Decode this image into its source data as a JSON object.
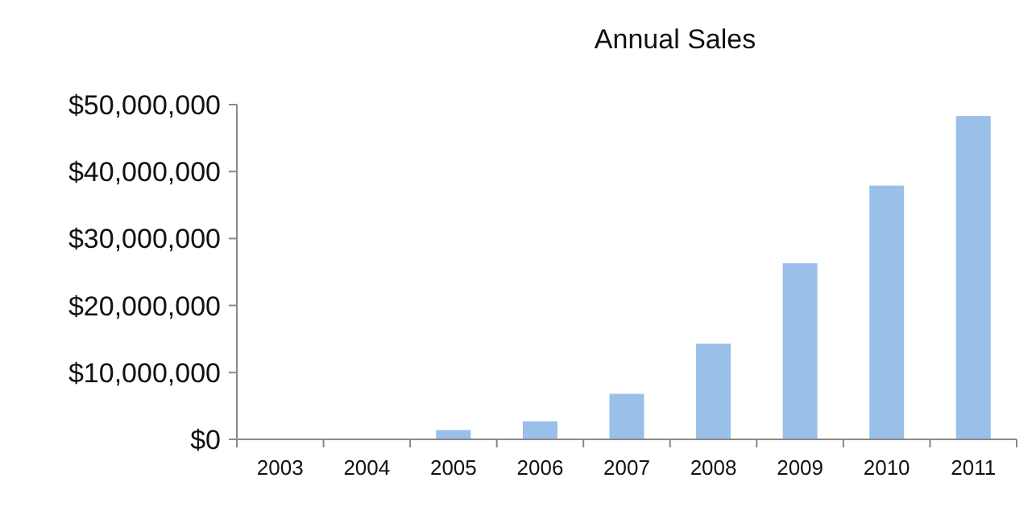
{
  "chart_data": {
    "type": "bar",
    "title": "Annual Sales",
    "categories": [
      "2003",
      "2004",
      "2005",
      "2006",
      "2007",
      "2008",
      "2009",
      "2010",
      "2011"
    ],
    "values": [
      100000,
      100000,
      1400000,
      2700000,
      6800000,
      14300000,
      26300000,
      37900000,
      48300000
    ],
    "color": "#9ac0ea",
    "ylim": [
      0,
      50000000
    ],
    "yticks": [
      {
        "value": 0,
        "label": "$0"
      },
      {
        "value": 10000000,
        "label": "$10,000,000"
      },
      {
        "value": 20000000,
        "label": "$20,000,000"
      },
      {
        "value": 30000000,
        "label": "$30,000,000"
      },
      {
        "value": 40000000,
        "label": "$40,000,000"
      },
      {
        "value": 50000000,
        "label": "$50,000,000"
      }
    ],
    "grid": false
  }
}
